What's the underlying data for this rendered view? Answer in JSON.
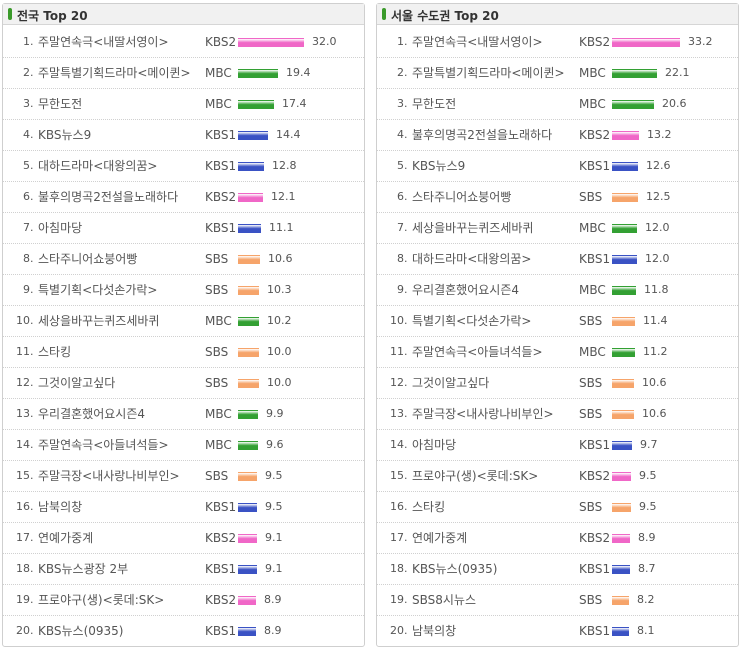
{
  "colors": {
    "KBS2": "#f067c7",
    "MBC": "#33a033",
    "KBS1": "#3a52c4",
    "SBS": "#f6a46a"
  },
  "chart_data": [
    {
      "type": "bar",
      "title": "전국 Top 20",
      "rows": [
        {
          "rank": "1",
          "title": "주말연속극<내딸서영이>",
          "channel": "KBS2",
          "value": 32.0,
          "label": "32.0"
        },
        {
          "rank": "2",
          "title": "주말특별기획드라마<메이퀸>",
          "channel": "MBC",
          "value": 19.4,
          "label": "19.4"
        },
        {
          "rank": "3",
          "title": "무한도전",
          "channel": "MBC",
          "value": 17.4,
          "label": "17.4"
        },
        {
          "rank": "4",
          "title": "KBS뉴스9",
          "channel": "KBS1",
          "value": 14.4,
          "label": "14.4"
        },
        {
          "rank": "5",
          "title": "대하드라마<대왕의꿈>",
          "channel": "KBS1",
          "value": 12.8,
          "label": "12.8"
        },
        {
          "rank": "6",
          "title": "불후의명곡2전설을노래하다",
          "channel": "KBS2",
          "value": 12.1,
          "label": "12.1"
        },
        {
          "rank": "7",
          "title": "아침마당",
          "channel": "KBS1",
          "value": 11.1,
          "label": "11.1"
        },
        {
          "rank": "8",
          "title": "스타주니어쇼붕어빵",
          "channel": "SBS",
          "value": 10.6,
          "label": "10.6"
        },
        {
          "rank": "9",
          "title": "특별기획<다섯손가락>",
          "channel": "SBS",
          "value": 10.3,
          "label": "10.3"
        },
        {
          "rank": "10",
          "title": "세상을바꾸는퀴즈세바퀴",
          "channel": "MBC",
          "value": 10.2,
          "label": "10.2"
        },
        {
          "rank": "11",
          "title": "스타킹",
          "channel": "SBS",
          "value": 10.0,
          "label": "10.0"
        },
        {
          "rank": "12",
          "title": "그것이알고싶다",
          "channel": "SBS",
          "value": 10.0,
          "label": "10.0"
        },
        {
          "rank": "13",
          "title": "우리결혼했어요시즌4",
          "channel": "MBC",
          "value": 9.9,
          "label": "9.9"
        },
        {
          "rank": "14",
          "title": "주말연속극<아들녀석들>",
          "channel": "MBC",
          "value": 9.6,
          "label": "9.6"
        },
        {
          "rank": "15",
          "title": "주말극장<내사랑나비부인>",
          "channel": "SBS",
          "value": 9.5,
          "label": "9.5"
        },
        {
          "rank": "16",
          "title": "남북의창",
          "channel": "KBS1",
          "value": 9.5,
          "label": "9.5"
        },
        {
          "rank": "17",
          "title": "연예가중계",
          "channel": "KBS2",
          "value": 9.1,
          "label": "9.1"
        },
        {
          "rank": "18",
          "title": "KBS뉴스광장 2부",
          "channel": "KBS1",
          "value": 9.1,
          "label": "9.1"
        },
        {
          "rank": "19",
          "title": "프로야구(생)<롯데:SK>",
          "channel": "KBS2",
          "value": 8.9,
          "label": "8.9"
        },
        {
          "rank": "20",
          "title": "KBS뉴스(0935)",
          "channel": "KBS1",
          "value": 8.9,
          "label": "8.9"
        }
      ]
    },
    {
      "type": "bar",
      "title": "서울 수도권 Top 20",
      "rows": [
        {
          "rank": "1",
          "title": "주말연속극<내딸서영이>",
          "channel": "KBS2",
          "value": 33.2,
          "label": "33.2"
        },
        {
          "rank": "2",
          "title": "주말특별기획드라마<메이퀸>",
          "channel": "MBC",
          "value": 22.1,
          "label": "22.1"
        },
        {
          "rank": "3",
          "title": "무한도전",
          "channel": "MBC",
          "value": 20.6,
          "label": "20.6"
        },
        {
          "rank": "4",
          "title": "불후의명곡2전설을노래하다",
          "channel": "KBS2",
          "value": 13.2,
          "label": "13.2"
        },
        {
          "rank": "5",
          "title": "KBS뉴스9",
          "channel": "KBS1",
          "value": 12.6,
          "label": "12.6"
        },
        {
          "rank": "6",
          "title": "스타주니어쇼붕어빵",
          "channel": "SBS",
          "value": 12.5,
          "label": "12.5"
        },
        {
          "rank": "7",
          "title": "세상을바꾸는퀴즈세바퀴",
          "channel": "MBC",
          "value": 12.0,
          "label": "12.0"
        },
        {
          "rank": "8",
          "title": "대하드라마<대왕의꿈>",
          "channel": "KBS1",
          "value": 12.0,
          "label": "12.0"
        },
        {
          "rank": "9",
          "title": "우리결혼했어요시즌4",
          "channel": "MBC",
          "value": 11.8,
          "label": "11.8"
        },
        {
          "rank": "10",
          "title": "특별기획<다섯손가락>",
          "channel": "SBS",
          "value": 11.4,
          "label": "11.4"
        },
        {
          "rank": "11",
          "title": "주말연속극<아들녀석들>",
          "channel": "MBC",
          "value": 11.2,
          "label": "11.2"
        },
        {
          "rank": "12",
          "title": "그것이알고싶다",
          "channel": "SBS",
          "value": 10.6,
          "label": "10.6"
        },
        {
          "rank": "13",
          "title": "주말극장<내사랑나비부인>",
          "channel": "SBS",
          "value": 10.6,
          "label": "10.6"
        },
        {
          "rank": "14",
          "title": "아침마당",
          "channel": "KBS1",
          "value": 9.7,
          "label": "9.7"
        },
        {
          "rank": "15",
          "title": "프로야구(생)<롯데:SK>",
          "channel": "KBS2",
          "value": 9.5,
          "label": "9.5"
        },
        {
          "rank": "16",
          "title": "스타킹",
          "channel": "SBS",
          "value": 9.5,
          "label": "9.5"
        },
        {
          "rank": "17",
          "title": "연예가중계",
          "channel": "KBS2",
          "value": 8.9,
          "label": "8.9"
        },
        {
          "rank": "18",
          "title": "KBS뉴스(0935)",
          "channel": "KBS1",
          "value": 8.7,
          "label": "8.7"
        },
        {
          "rank": "19",
          "title": "SBS8시뉴스",
          "channel": "SBS",
          "value": 8.2,
          "label": "8.2"
        },
        {
          "rank": "20",
          "title": "남북의창",
          "channel": "KBS1",
          "value": 8.1,
          "label": "8.1"
        }
      ]
    }
  ]
}
